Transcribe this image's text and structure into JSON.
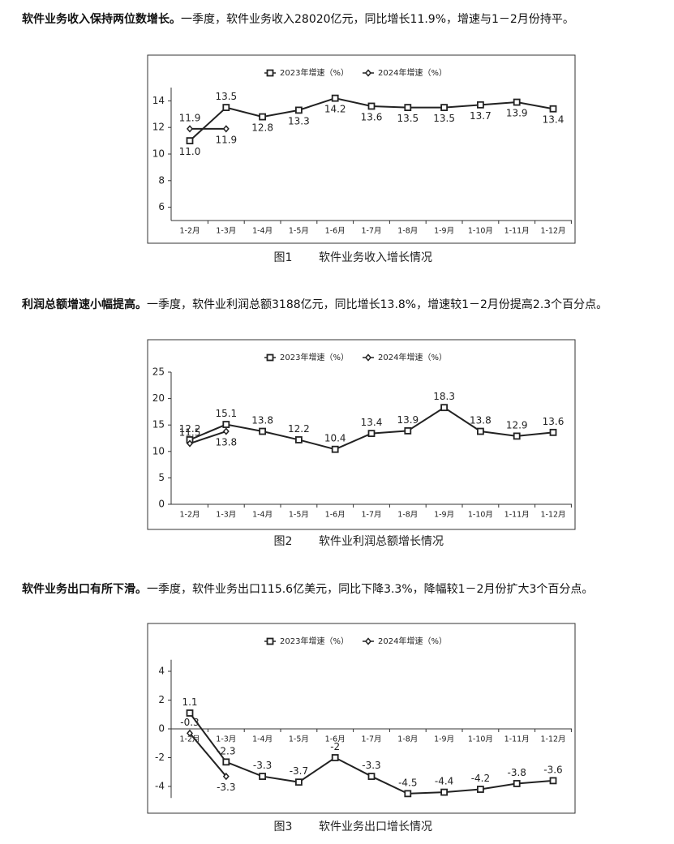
{
  "paragraphs": [
    {
      "lead": "软件业务收入保持两位数增长。",
      "text": "一季度，软件业务收入28020亿元，同比增长11.9%，增速与1－2月份持平。"
    },
    {
      "lead": "利润总额增速小幅提高。",
      "text": "一季度，软件业利润总额3188亿元，同比增长13.8%，增速较1－2月份提高2.3个百分点。"
    },
    {
      "lead": "软件业务出口有所下滑。",
      "text": "一季度，软件业务出口115.6亿美元，同比下降3.3%，降幅较1－2月份扩大3个百分点。"
    }
  ],
  "chart_data": [
    {
      "type": "line",
      "figure_label": "图1",
      "title": "软件业务收入增长情况",
      "categories": [
        "1-2月",
        "1-3月",
        "1-4月",
        "1-5月",
        "1-6月",
        "1-7月",
        "1-8月",
        "1-9月",
        "1-10月",
        "1-11月",
        "1-12月"
      ],
      "series": [
        {
          "name": "2023年增速（%）",
          "color": "#222222",
          "marker": "square",
          "values": [
            11.0,
            13.5,
            12.8,
            13.3,
            14.2,
            13.6,
            13.5,
            13.5,
            13.7,
            13.9,
            13.4
          ],
          "value_labels": [
            "11.0",
            "13.5",
            "12.8",
            "13.3",
            "14.2",
            "13.6",
            "13.5",
            "13.5",
            "13.7",
            "13.9",
            "13.4"
          ]
        },
        {
          "name": "2024年增速（%）",
          "color": "#222222",
          "marker": "diamond",
          "values": [
            11.9,
            11.9,
            null,
            null,
            null,
            null,
            null,
            null,
            null,
            null,
            null
          ]
        }
      ],
      "ylim": [
        5,
        15
      ],
      "yticks": [
        6,
        8,
        10,
        12,
        14
      ],
      "legend": "top"
    },
    {
      "type": "line",
      "figure_label": "图2",
      "title": "软件业利润总额增长情况",
      "categories": [
        "1-2月",
        "1-3月",
        "1-4月",
        "1-5月",
        "1-6月",
        "1-7月",
        "1-8月",
        "1-9月",
        "1-10月",
        "1-11月",
        "1-12月"
      ],
      "series": [
        {
          "name": "2023年增速（%）",
          "color": "#222222",
          "marker": "square",
          "values": [
            12.2,
            15.1,
            13.8,
            12.2,
            10.4,
            13.4,
            13.9,
            18.3,
            13.8,
            12.9,
            13.6
          ]
        },
        {
          "name": "2024年增速（%）",
          "color": "#222222",
          "marker": "diamond",
          "values": [
            11.5,
            13.8,
            null,
            null,
            null,
            null,
            null,
            null,
            null,
            null,
            null
          ]
        }
      ],
      "ylim": [
        0,
        25
      ],
      "yticks": [
        0,
        5,
        10,
        15,
        20,
        25
      ],
      "legend": "top"
    },
    {
      "type": "line",
      "figure_label": "图3",
      "title": "软件业务出口增长情况",
      "categories": [
        "1-2月",
        "1-3月",
        "1-4月",
        "1-5月",
        "1-6月",
        "1-7月",
        "1-8月",
        "1-9月",
        "1-10月",
        "1-11月",
        "1-12月"
      ],
      "series": [
        {
          "name": "2023年增速（%）",
          "color": "#222222",
          "marker": "square",
          "values": [
            1.1,
            -2.3,
            -3.3,
            -3.7,
            -2.0,
            -3.3,
            -4.5,
            -4.4,
            -4.2,
            -3.8,
            -3.6
          ]
        },
        {
          "name": "2024年增速（%）",
          "color": "#222222",
          "marker": "diamond",
          "values": [
            -0.3,
            -3.3,
            null,
            null,
            null,
            null,
            null,
            null,
            null,
            null,
            null
          ]
        }
      ],
      "ylim": [
        -4.8,
        4.8
      ],
      "yticks": [
        -4,
        -2,
        0,
        2,
        4
      ],
      "legend": "top"
    }
  ]
}
